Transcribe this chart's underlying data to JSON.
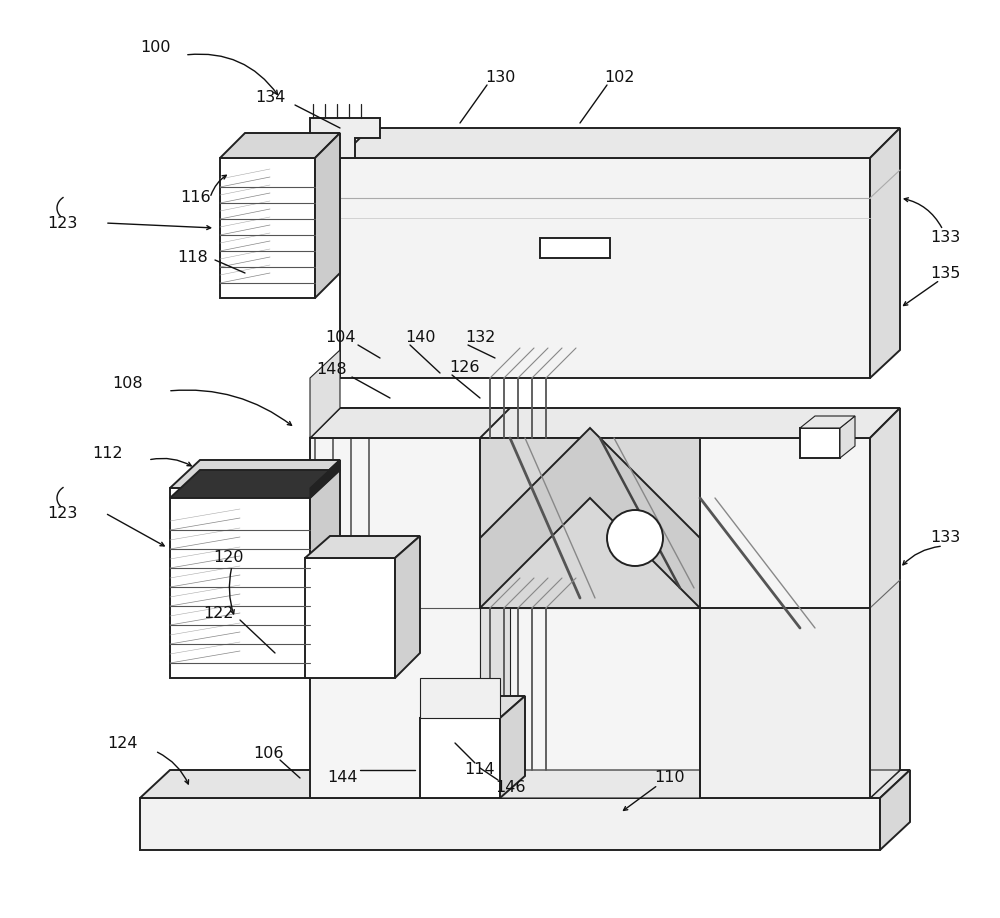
{
  "bg_color": "#ffffff",
  "line_color": "#222222",
  "label_color": "#111111",
  "label_fontsize": 11.5,
  "fig_width": 10.0,
  "fig_height": 9.18
}
